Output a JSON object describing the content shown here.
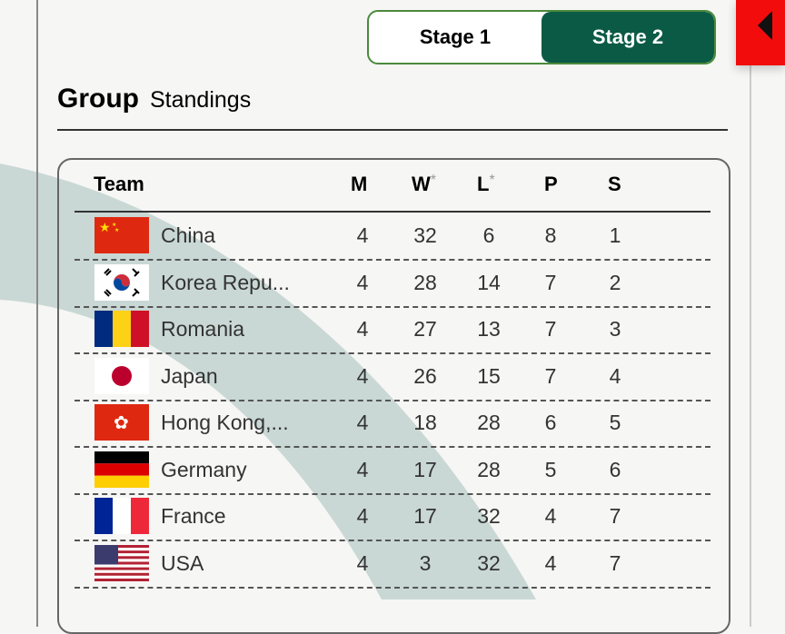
{
  "tabs": [
    {
      "label": "Stage 1",
      "active": false
    },
    {
      "label": "Stage 2",
      "active": true
    }
  ],
  "heading": {
    "bold": "Group",
    "rest": "Standings"
  },
  "columns": {
    "team": "Team",
    "m": "M",
    "w": "W",
    "l": "L",
    "p": "P",
    "s": "S",
    "asterisk": "*"
  },
  "rows": [
    {
      "team": "China",
      "flag": "china-flag",
      "m": "4",
      "w": "32",
      "l": "6",
      "p": "8",
      "s": "1"
    },
    {
      "team": "Korea Repu...",
      "flag": "korea-flag",
      "m": "4",
      "w": "28",
      "l": "14",
      "p": "7",
      "s": "2"
    },
    {
      "team": "Romania",
      "flag": "romania-flag",
      "m": "4",
      "w": "27",
      "l": "13",
      "p": "7",
      "s": "3"
    },
    {
      "team": "Japan",
      "flag": "japan-flag",
      "m": "4",
      "w": "26",
      "l": "15",
      "p": "7",
      "s": "4"
    },
    {
      "team": "Hong Kong,...",
      "flag": "hong-kong-flag",
      "m": "4",
      "w": "18",
      "l": "28",
      "p": "6",
      "s": "5"
    },
    {
      "team": "Germany",
      "flag": "germany-flag",
      "m": "4",
      "w": "17",
      "l": "28",
      "p": "5",
      "s": "6"
    },
    {
      "team": "France",
      "flag": "france-flag",
      "m": "4",
      "w": "17",
      "l": "32",
      "p": "4",
      "s": "7"
    },
    {
      "team": "USA",
      "flag": "usa-flag",
      "m": "4",
      "w": "3",
      "l": "32",
      "p": "4",
      "s": "7"
    }
  ],
  "colors": {
    "accent": "#0b5a45",
    "toggle_border": "#4a8a3a",
    "side_button": "#f20c0c"
  }
}
